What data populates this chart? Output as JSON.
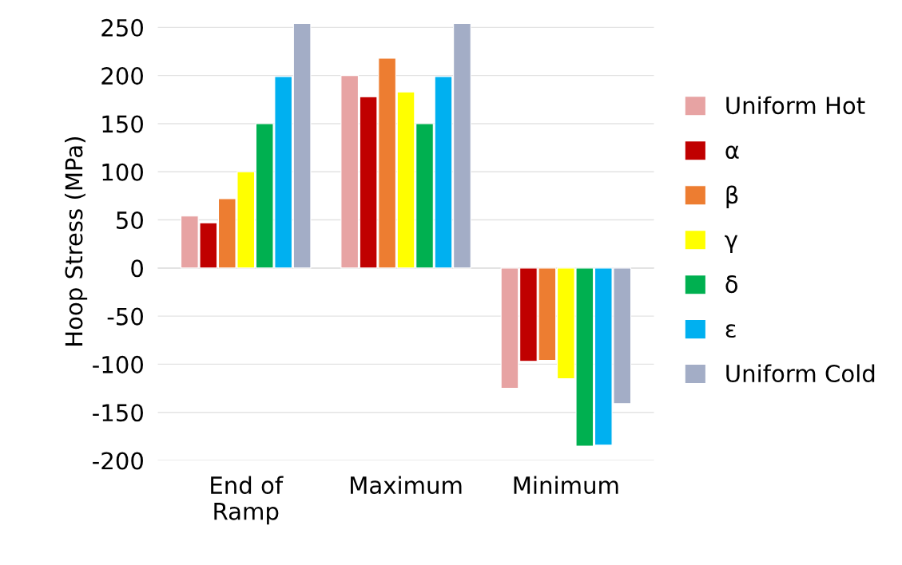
{
  "chart_data": {
    "type": "bar",
    "ylabel": "Hoop Stress (MPa)",
    "categories": [
      "End of\nRamp",
      "Maximum",
      "Minimum"
    ],
    "series": [
      {
        "name": "Uniform Hot",
        "color": "#e7a3a3",
        "values": [
          54,
          200,
          -125
        ]
      },
      {
        "name": "α",
        "color": "#c00000",
        "values": [
          47,
          178,
          -97
        ]
      },
      {
        "name": "β",
        "color": "#ed7d31",
        "values": [
          72,
          218,
          -96
        ]
      },
      {
        "name": "γ",
        "color": "#ffff00",
        "values": [
          100,
          183,
          -115
        ]
      },
      {
        "name": "δ",
        "color": "#00b050",
        "values": [
          150,
          150,
          -185
        ]
      },
      {
        "name": "ε",
        "color": "#00b0f0",
        "values": [
          199,
          199,
          -184
        ]
      },
      {
        "name": "Uniform Cold",
        "color": "#a3adc6",
        "values": [
          254,
          254,
          -141
        ]
      }
    ],
    "ylim": [
      -200,
      255
    ],
    "yticks": [
      250,
      200,
      150,
      100,
      50,
      0,
      -50,
      -100,
      -150,
      -200
    ],
    "grid": "y",
    "legend": "right"
  }
}
